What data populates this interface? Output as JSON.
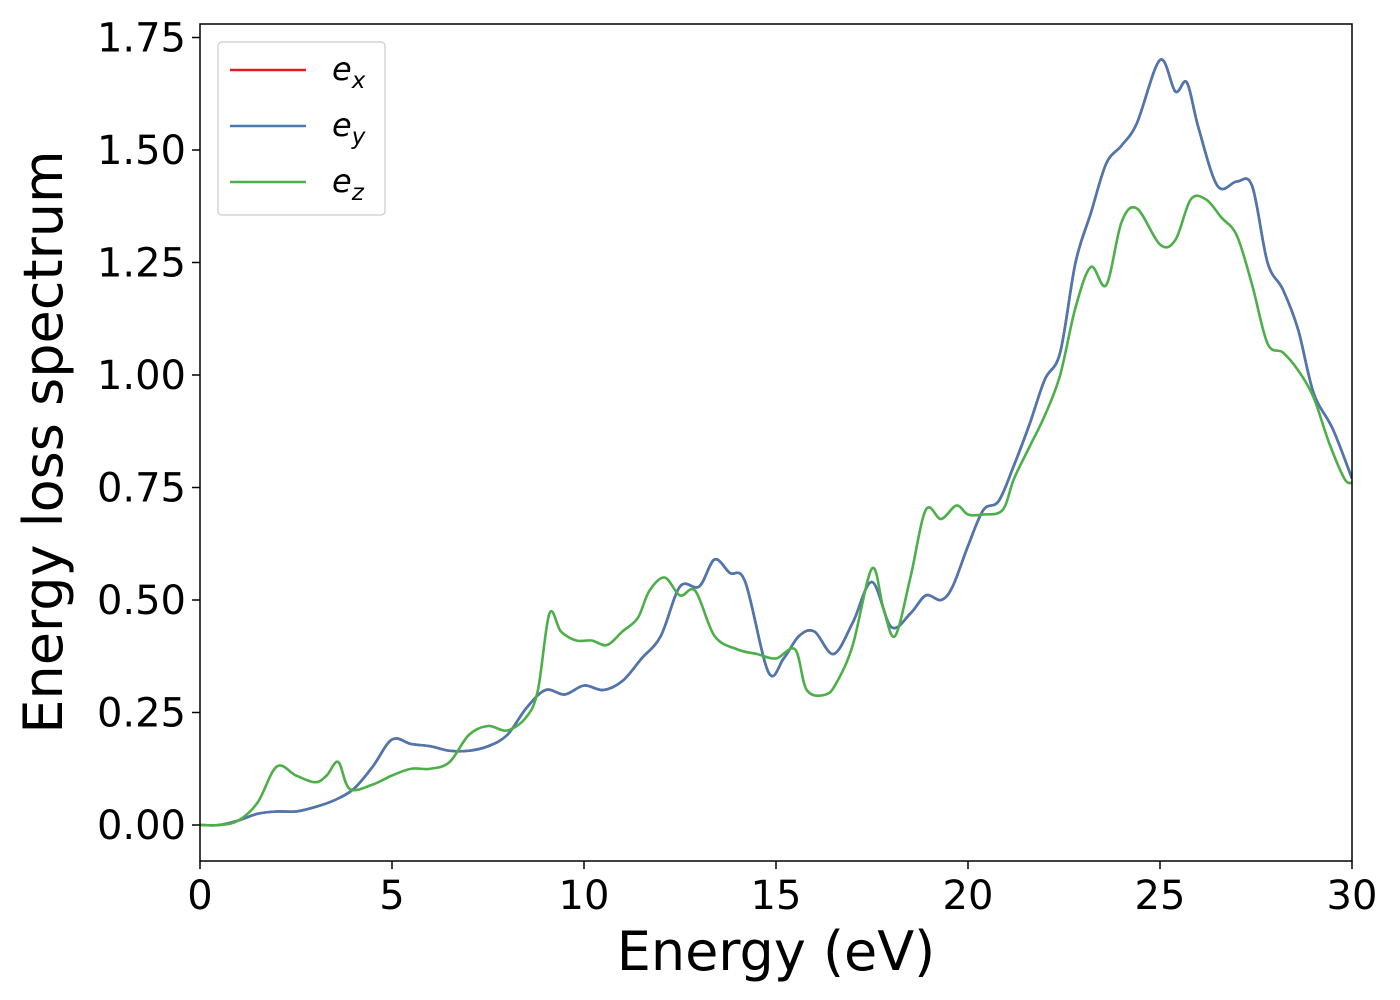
{
  "chart_data": {
    "type": "line",
    "title": "",
    "xlabel": "Energy (eV)",
    "ylabel": "Energy loss spectrum",
    "xlim": [
      0,
      30
    ],
    "ylim": [
      -0.08,
      1.78
    ],
    "xticks": [
      0,
      5,
      10,
      15,
      20,
      25,
      30
    ],
    "xtick_labels": [
      "0",
      "5",
      "10",
      "15",
      "20",
      "25",
      "30"
    ],
    "yticks": [
      0.0,
      0.25,
      0.5,
      0.75,
      1.0,
      1.25,
      1.5,
      1.75
    ],
    "ytick_labels": [
      "0.00",
      "0.25",
      "0.50",
      "0.75",
      "1.00",
      "1.25",
      "1.50",
      "1.75"
    ],
    "grid": false,
    "legend_position": "top-left",
    "legend": [
      {
        "base": "e",
        "sub": "x",
        "color": "#e41a1c"
      },
      {
        "base": "e",
        "sub": "y",
        "color": "#4a78b0"
      },
      {
        "base": "e",
        "sub": "z",
        "color": "#4daf4a"
      }
    ],
    "series": [
      {
        "name": "e_x",
        "color": "#e41a1c",
        "points": [
          [
            0,
            0.0
          ],
          [
            0.5,
            0.0
          ],
          [
            1.0,
            0.01
          ],
          [
            1.5,
            0.025
          ],
          [
            2.0,
            0.03
          ],
          [
            2.5,
            0.03
          ],
          [
            3.0,
            0.04
          ],
          [
            3.5,
            0.055
          ],
          [
            4.0,
            0.08
          ],
          [
            4.5,
            0.13
          ],
          [
            5.0,
            0.19
          ],
          [
            5.5,
            0.18
          ],
          [
            6.0,
            0.175
          ],
          [
            6.5,
            0.165
          ],
          [
            7.0,
            0.165
          ],
          [
            7.5,
            0.175
          ],
          [
            8.0,
            0.2
          ],
          [
            8.5,
            0.26
          ],
          [
            9.0,
            0.3
          ],
          [
            9.5,
            0.29
          ],
          [
            10.0,
            0.31
          ],
          [
            10.5,
            0.3
          ],
          [
            11.0,
            0.32
          ],
          [
            11.5,
            0.37
          ],
          [
            12.0,
            0.42
          ],
          [
            12.5,
            0.53
          ],
          [
            13.0,
            0.53
          ],
          [
            13.4,
            0.59
          ],
          [
            13.8,
            0.56
          ],
          [
            14.2,
            0.54
          ],
          [
            14.8,
            0.34
          ],
          [
            15.2,
            0.37
          ],
          [
            15.6,
            0.42
          ],
          [
            16.0,
            0.43
          ],
          [
            16.5,
            0.38
          ],
          [
            17.0,
            0.45
          ],
          [
            17.5,
            0.54
          ],
          [
            18.0,
            0.44
          ],
          [
            18.5,
            0.47
          ],
          [
            18.9,
            0.51
          ],
          [
            19.3,
            0.5
          ],
          [
            19.6,
            0.53
          ],
          [
            20.0,
            0.62
          ],
          [
            20.4,
            0.7
          ],
          [
            20.8,
            0.72
          ],
          [
            21.2,
            0.8
          ],
          [
            21.6,
            0.89
          ],
          [
            22.0,
            0.99
          ],
          [
            22.4,
            1.05
          ],
          [
            22.8,
            1.25
          ],
          [
            23.2,
            1.36
          ],
          [
            23.6,
            1.47
          ],
          [
            24.0,
            1.51
          ],
          [
            24.4,
            1.56
          ],
          [
            25.0,
            1.7
          ],
          [
            25.4,
            1.63
          ],
          [
            25.7,
            1.65
          ],
          [
            26.0,
            1.55
          ],
          [
            26.5,
            1.42
          ],
          [
            27.0,
            1.43
          ],
          [
            27.4,
            1.42
          ],
          [
            27.8,
            1.25
          ],
          [
            28.2,
            1.19
          ],
          [
            28.6,
            1.1
          ],
          [
            29.0,
            0.96
          ],
          [
            29.5,
            0.88
          ],
          [
            30.0,
            0.77
          ]
        ]
      },
      {
        "name": "e_y",
        "color": "#4a78b0",
        "points": [
          [
            0,
            0.0
          ],
          [
            0.5,
            0.0
          ],
          [
            1.0,
            0.01
          ],
          [
            1.5,
            0.025
          ],
          [
            2.0,
            0.03
          ],
          [
            2.5,
            0.03
          ],
          [
            3.0,
            0.04
          ],
          [
            3.5,
            0.055
          ],
          [
            4.0,
            0.08
          ],
          [
            4.5,
            0.13
          ],
          [
            5.0,
            0.19
          ],
          [
            5.5,
            0.18
          ],
          [
            6.0,
            0.175
          ],
          [
            6.5,
            0.165
          ],
          [
            7.0,
            0.165
          ],
          [
            7.5,
            0.175
          ],
          [
            8.0,
            0.2
          ],
          [
            8.5,
            0.26
          ],
          [
            9.0,
            0.3
          ],
          [
            9.5,
            0.29
          ],
          [
            10.0,
            0.31
          ],
          [
            10.5,
            0.3
          ],
          [
            11.0,
            0.32
          ],
          [
            11.5,
            0.37
          ],
          [
            12.0,
            0.42
          ],
          [
            12.5,
            0.53
          ],
          [
            13.0,
            0.53
          ],
          [
            13.4,
            0.59
          ],
          [
            13.8,
            0.56
          ],
          [
            14.2,
            0.54
          ],
          [
            14.8,
            0.34
          ],
          [
            15.2,
            0.37
          ],
          [
            15.6,
            0.42
          ],
          [
            16.0,
            0.43
          ],
          [
            16.5,
            0.38
          ],
          [
            17.0,
            0.45
          ],
          [
            17.5,
            0.54
          ],
          [
            18.0,
            0.44
          ],
          [
            18.5,
            0.47
          ],
          [
            18.9,
            0.51
          ],
          [
            19.3,
            0.5
          ],
          [
            19.6,
            0.53
          ],
          [
            20.0,
            0.62
          ],
          [
            20.4,
            0.7
          ],
          [
            20.8,
            0.72
          ],
          [
            21.2,
            0.8
          ],
          [
            21.6,
            0.89
          ],
          [
            22.0,
            0.99
          ],
          [
            22.4,
            1.05
          ],
          [
            22.8,
            1.25
          ],
          [
            23.2,
            1.36
          ],
          [
            23.6,
            1.47
          ],
          [
            24.0,
            1.51
          ],
          [
            24.4,
            1.56
          ],
          [
            25.0,
            1.7
          ],
          [
            25.4,
            1.63
          ],
          [
            25.7,
            1.65
          ],
          [
            26.0,
            1.55
          ],
          [
            26.5,
            1.42
          ],
          [
            27.0,
            1.43
          ],
          [
            27.4,
            1.42
          ],
          [
            27.8,
            1.25
          ],
          [
            28.2,
            1.19
          ],
          [
            28.6,
            1.1
          ],
          [
            29.0,
            0.96
          ],
          [
            29.5,
            0.88
          ],
          [
            30.0,
            0.77
          ]
        ]
      },
      {
        "name": "e_z",
        "color": "#4daf4a",
        "points": [
          [
            0,
            0.0
          ],
          [
            0.5,
            0.0
          ],
          [
            1.0,
            0.01
          ],
          [
            1.5,
            0.05
          ],
          [
            2.0,
            0.13
          ],
          [
            2.5,
            0.11
          ],
          [
            3.0,
            0.095
          ],
          [
            3.3,
            0.11
          ],
          [
            3.6,
            0.14
          ],
          [
            3.9,
            0.08
          ],
          [
            4.5,
            0.09
          ],
          [
            5.0,
            0.11
          ],
          [
            5.5,
            0.125
          ],
          [
            6.0,
            0.125
          ],
          [
            6.5,
            0.14
          ],
          [
            7.0,
            0.2
          ],
          [
            7.5,
            0.22
          ],
          [
            8.0,
            0.21
          ],
          [
            8.5,
            0.24
          ],
          [
            8.8,
            0.3
          ],
          [
            9.1,
            0.47
          ],
          [
            9.4,
            0.43
          ],
          [
            9.8,
            0.41
          ],
          [
            10.2,
            0.41
          ],
          [
            10.6,
            0.4
          ],
          [
            11.0,
            0.43
          ],
          [
            11.4,
            0.46
          ],
          [
            11.7,
            0.52
          ],
          [
            12.1,
            0.55
          ],
          [
            12.5,
            0.51
          ],
          [
            12.9,
            0.52
          ],
          [
            13.4,
            0.42
          ],
          [
            14.0,
            0.39
          ],
          [
            14.5,
            0.38
          ],
          [
            15.0,
            0.37
          ],
          [
            15.5,
            0.39
          ],
          [
            15.8,
            0.3
          ],
          [
            16.3,
            0.29
          ],
          [
            16.6,
            0.32
          ],
          [
            17.0,
            0.4
          ],
          [
            17.5,
            0.57
          ],
          [
            17.8,
            0.48
          ],
          [
            18.1,
            0.42
          ],
          [
            18.5,
            0.55
          ],
          [
            18.9,
            0.7
          ],
          [
            19.3,
            0.68
          ],
          [
            19.7,
            0.71
          ],
          [
            20.0,
            0.69
          ],
          [
            20.4,
            0.69
          ],
          [
            20.9,
            0.7
          ],
          [
            21.2,
            0.77
          ],
          [
            21.6,
            0.84
          ],
          [
            22.0,
            0.91
          ],
          [
            22.4,
            1.0
          ],
          [
            22.8,
            1.15
          ],
          [
            23.2,
            1.24
          ],
          [
            23.6,
            1.2
          ],
          [
            24.0,
            1.34
          ],
          [
            24.4,
            1.37
          ],
          [
            25.0,
            1.29
          ],
          [
            25.4,
            1.3
          ],
          [
            25.8,
            1.39
          ],
          [
            26.2,
            1.39
          ],
          [
            26.6,
            1.35
          ],
          [
            27.0,
            1.31
          ],
          [
            27.4,
            1.2
          ],
          [
            27.8,
            1.07
          ],
          [
            28.2,
            1.05
          ],
          [
            28.6,
            1.01
          ],
          [
            29.0,
            0.95
          ],
          [
            29.4,
            0.85
          ],
          [
            29.8,
            0.77
          ],
          [
            30.0,
            0.76
          ]
        ]
      }
    ]
  }
}
